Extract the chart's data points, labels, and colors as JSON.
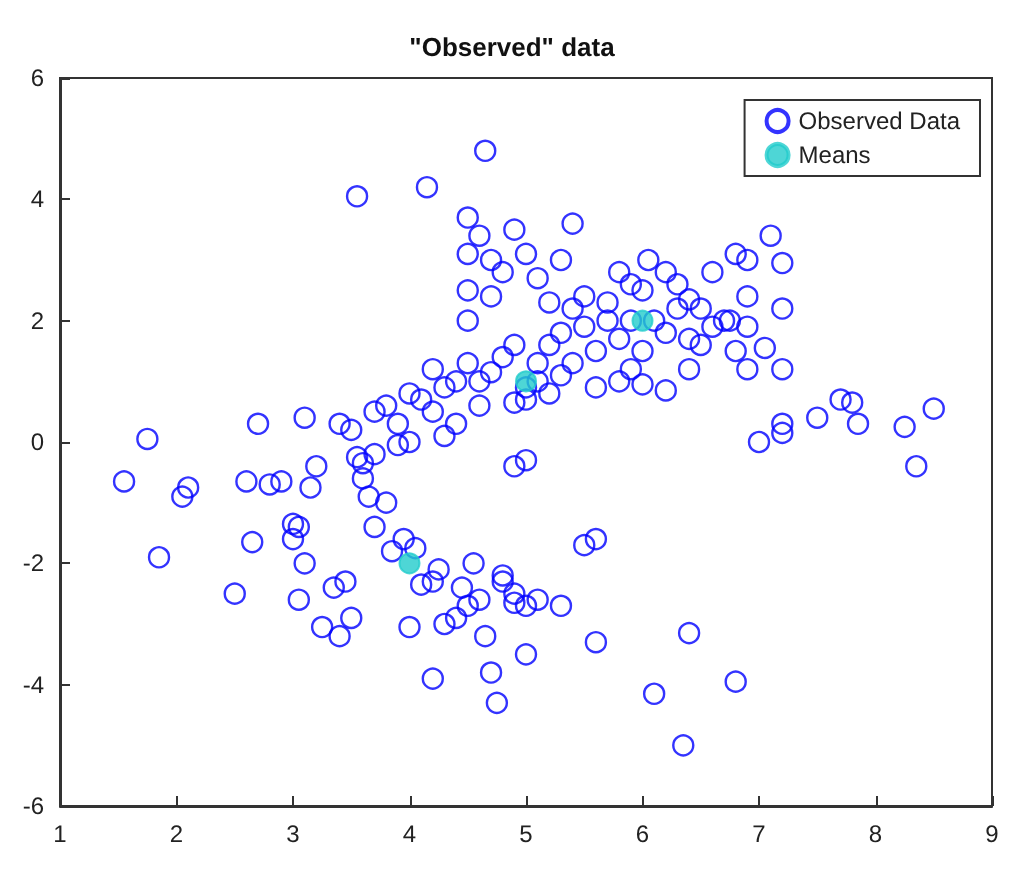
{
  "chart_data": {
    "type": "scatter",
    "title": "\"Observed\" data",
    "xlim": [
      1,
      9
    ],
    "xticks": [
      1,
      2,
      3,
      4,
      5,
      6,
      7,
      8,
      9
    ],
    "ylim": [
      -6,
      6
    ],
    "yticks": [
      -6,
      -4,
      -2,
      0,
      2,
      4,
      6
    ],
    "grid": false,
    "legend": "top right",
    "marker": "circle",
    "series": [
      {
        "name": "Observed Data",
        "color": "#0000ff",
        "x": [
          1.55,
          1.75,
          1.85,
          2.05,
          2.1,
          2.5,
          2.6,
          2.65,
          2.7,
          2.8,
          2.9,
          3.0,
          3.0,
          3.05,
          3.1,
          3.05,
          3.15,
          3.2,
          3.35,
          3.4,
          3.45,
          3.5,
          3.6,
          3.65,
          3.7,
          3.7,
          3.8,
          3.85,
          3.95,
          4.05,
          4.1,
          4.2,
          4.25,
          4.3,
          4.2,
          4.4,
          4.5,
          4.6,
          4.65,
          4.7,
          4.75,
          4.8,
          4.9,
          5.0,
          5.1,
          5.3,
          5.5,
          5.6,
          5.6,
          5.0,
          6.1,
          6.35,
          6.4,
          6.8,
          4.55,
          4.0,
          3.25,
          4.8,
          4.9,
          4.45,
          3.55,
          4.15,
          4.65,
          4.5,
          4.6,
          4.5,
          4.7,
          4.5,
          4.5,
          4.7,
          3.4,
          3.9,
          3.1,
          3.5,
          3.7,
          3.8,
          3.9,
          4.0,
          4.1,
          4.2,
          4.3,
          4.4,
          4.5,
          4.6,
          4.7,
          4.8,
          4.9,
          5.0,
          5.1,
          5.2,
          5.3,
          5.4,
          4.2,
          4.4,
          4.6,
          3.55,
          3.6,
          4.0,
          4.3,
          4.8,
          4.9,
          5.0,
          5.4,
          5.3,
          5.1,
          5.2,
          5.4,
          5.5,
          5.6,
          5.7,
          5.8,
          5.9,
          5.0,
          5.2,
          4.9,
          5.1,
          5.6,
          5.3,
          4.9,
          5.0,
          5.9,
          6.0,
          5.8,
          6.2,
          6.6,
          6.8,
          7.1,
          7.2,
          6.9,
          7.2,
          6.5,
          6.3,
          6.1,
          6.4,
          6.7,
          6.5,
          6.8,
          6.4,
          6.2,
          6.0,
          5.9,
          6.9,
          7.2,
          6.9,
          6.2,
          6.0,
          7.0,
          7.2,
          7.2,
          7.5,
          7.8,
          7.7,
          7.85,
          8.25,
          8.35,
          8.5,
          5.8,
          6.6,
          7.05,
          6.3,
          6.05,
          6.4,
          5.7,
          5.5,
          6.9,
          6.75
        ],
        "values": [
          -0.65,
          0.05,
          -1.9,
          -0.9,
          -0.75,
          -2.5,
          -0.65,
          -1.65,
          0.3,
          -0.7,
          -0.65,
          -1.35,
          -1.6,
          -1.4,
          -2.0,
          -2.6,
          -0.75,
          -0.4,
          -2.4,
          -3.2,
          -2.3,
          -2.9,
          -0.6,
          -0.9,
          -1.4,
          -0.2,
          -1.0,
          -1.8,
          -1.6,
          -1.75,
          -2.35,
          -2.3,
          -2.1,
          -3.0,
          -3.9,
          -2.9,
          -2.7,
          -2.6,
          -3.2,
          -3.8,
          -4.3,
          -2.2,
          -2.5,
          -2.7,
          -2.6,
          -2.7,
          -1.7,
          -1.6,
          -3.3,
          -3.5,
          -4.15,
          -5.0,
          -3.15,
          -3.95,
          -2.0,
          -3.05,
          -3.05,
          -2.3,
          -2.65,
          -2.4,
          4.05,
          4.2,
          4.8,
          3.7,
          3.4,
          3.1,
          3.0,
          2.5,
          2.0,
          2.4,
          0.3,
          -0.05,
          0.4,
          0.2,
          0.5,
          0.6,
          0.3,
          0.8,
          0.7,
          1.2,
          0.9,
          1.0,
          1.3,
          1.0,
          1.15,
          1.4,
          1.6,
          0.9,
          1.3,
          1.6,
          1.8,
          2.2,
          0.5,
          0.3,
          0.6,
          -0.25,
          -0.35,
          0.0,
          0.1,
          2.8,
          3.5,
          3.1,
          3.6,
          3.0,
          2.7,
          2.3,
          1.3,
          1.9,
          1.5,
          2.3,
          1.7,
          2.0,
          0.7,
          0.8,
          0.65,
          1.0,
          0.9,
          1.1,
          -0.4,
          -0.3,
          2.6,
          2.5,
          2.8,
          2.8,
          2.8,
          3.1,
          3.4,
          2.95,
          3.0,
          2.2,
          2.2,
          2.2,
          2.0,
          2.35,
          2.0,
          1.6,
          1.5,
          1.7,
          1.8,
          1.5,
          1.2,
          1.2,
          1.2,
          1.9,
          0.85,
          0.95,
          0.0,
          0.3,
          0.15,
          0.4,
          0.65,
          0.7,
          0.3,
          0.25,
          -0.4,
          0.55,
          1.0,
          1.9,
          1.55,
          2.6,
          3.0,
          1.2,
          2.0,
          2.4,
          2.4,
          2.0
        ]
      },
      {
        "name": "Means",
        "color": "#22cccc",
        "x": [
          4,
          5,
          6
        ],
        "values": [
          -2,
          1,
          2
        ]
      }
    ]
  }
}
